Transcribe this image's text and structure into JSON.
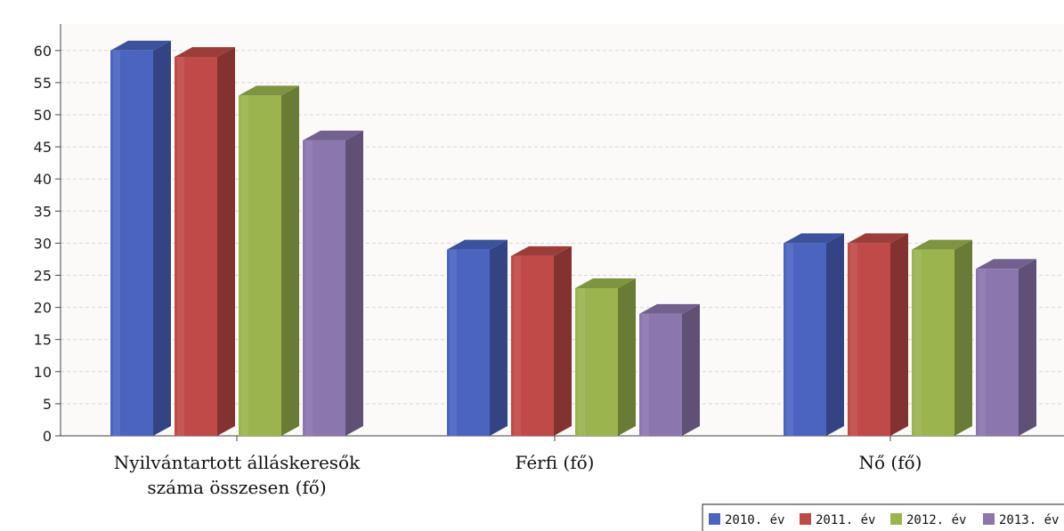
{
  "chart_data": {
    "type": "bar",
    "title": "",
    "xlabel": "",
    "ylabel": "",
    "ylim": [
      0,
      60
    ],
    "yticks": [
      0,
      5,
      10,
      15,
      20,
      25,
      30,
      35,
      40,
      45,
      50,
      55,
      60
    ],
    "grid": true,
    "legend_position": "bottom-right",
    "categories": [
      [
        "Nyilvántartott álláskeresők",
        "száma összesen (fő)"
      ],
      [
        "Férfi (fő)"
      ],
      [
        "Nő (fő)"
      ]
    ],
    "series": [
      {
        "name": "2010. év",
        "color": "#4a64c0",
        "values": [
          60,
          29,
          30
        ]
      },
      {
        "name": "2011. év",
        "color": "#c04a47",
        "values": [
          59,
          28,
          30
        ]
      },
      {
        "name": "2012. év",
        "color": "#9ab54e",
        "values": [
          53,
          23,
          29
        ]
      },
      {
        "name": "2013. év",
        "color": "#8b76ae",
        "values": [
          46,
          19,
          26
        ]
      }
    ]
  }
}
